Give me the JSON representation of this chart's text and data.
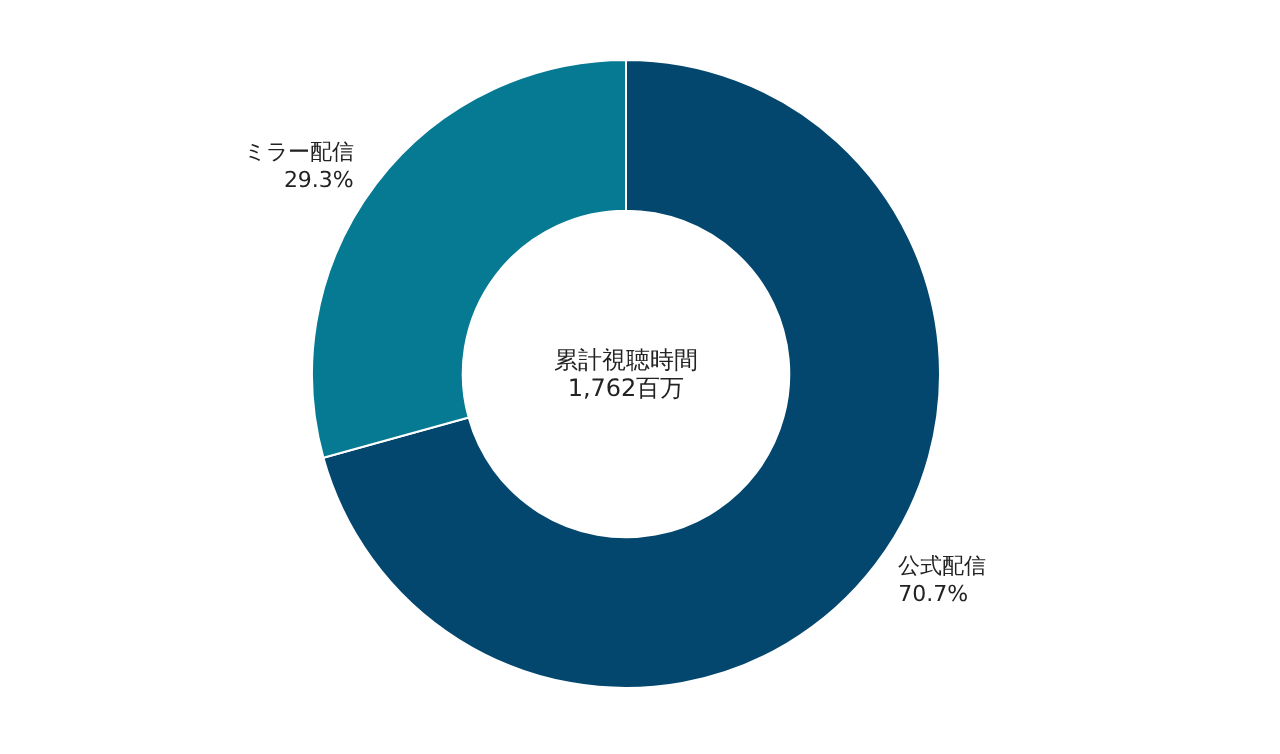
{
  "chart_data": {
    "type": "donut",
    "categories": [
      "公式配信",
      "ミラー配信"
    ],
    "values": [
      70.7,
      29.3
    ],
    "colors": [
      "#03476f",
      "#057a92"
    ],
    "value_labels": [
      "70.7%",
      "29.3%"
    ],
    "annotations": [
      "累計視聴時間",
      "1,762百万"
    ]
  }
}
